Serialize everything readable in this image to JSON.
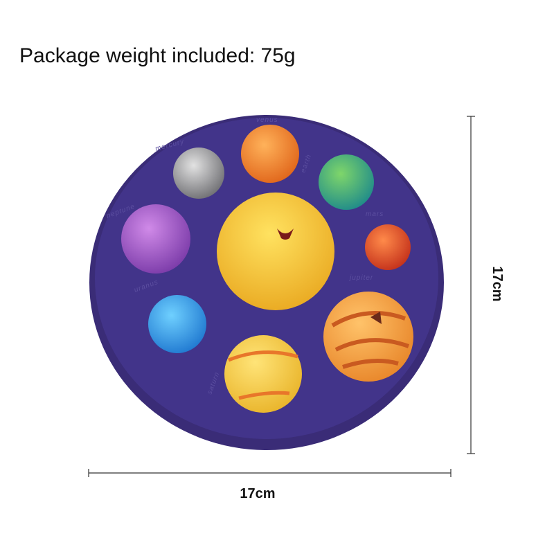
{
  "header": {
    "title": "Package weight included: 75g"
  },
  "dimensions": {
    "height": "17cm",
    "width": "17cm"
  },
  "embossed_labels": [
    "mercury",
    "venus",
    "earth",
    "mars",
    "jupiter",
    "saturn",
    "uranus",
    "neptune"
  ]
}
